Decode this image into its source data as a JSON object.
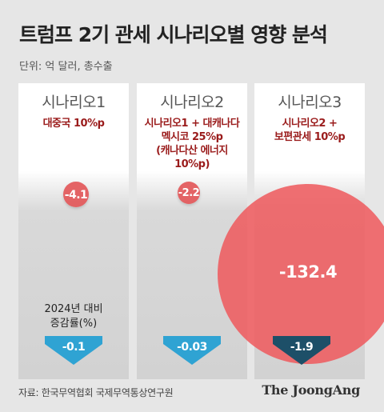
{
  "title": "트럼프 2기 관세 시나리오별 영향 분석",
  "unit": "단위: 억 달러, 총수출",
  "source": "자료: 한국무역협회 국제무역통상연구원",
  "brand": "The JoongAng",
  "chart_data": {
    "type": "bubble",
    "categories": [
      "시나리오1",
      "시나리오2",
      "시나리오3"
    ],
    "descriptions": [
      [
        "대중국 10%p"
      ],
      [
        "시나리오1 + 대캐나다",
        "멕시코 25%p",
        "(캐나다산 에너지",
        "10%p)"
      ],
      [
        "시나리오2 +",
        "보편관세 10%p"
      ]
    ],
    "impact_label": "",
    "impact_values": [
      "-4.1",
      "-2.2",
      "-132.4"
    ],
    "growth_label": [
      "2024년 대비",
      "증감률(%)"
    ],
    "growth_values": [
      "-0.1",
      "-0.03",
      "-1.9"
    ],
    "colors": {
      "bubble": "#e9585c",
      "desc_text": "#9a1b1b",
      "arrow_light": "#2fa3d3",
      "arrow_dark": "#1d4f68",
      "background": "#e6e6e6"
    }
  }
}
